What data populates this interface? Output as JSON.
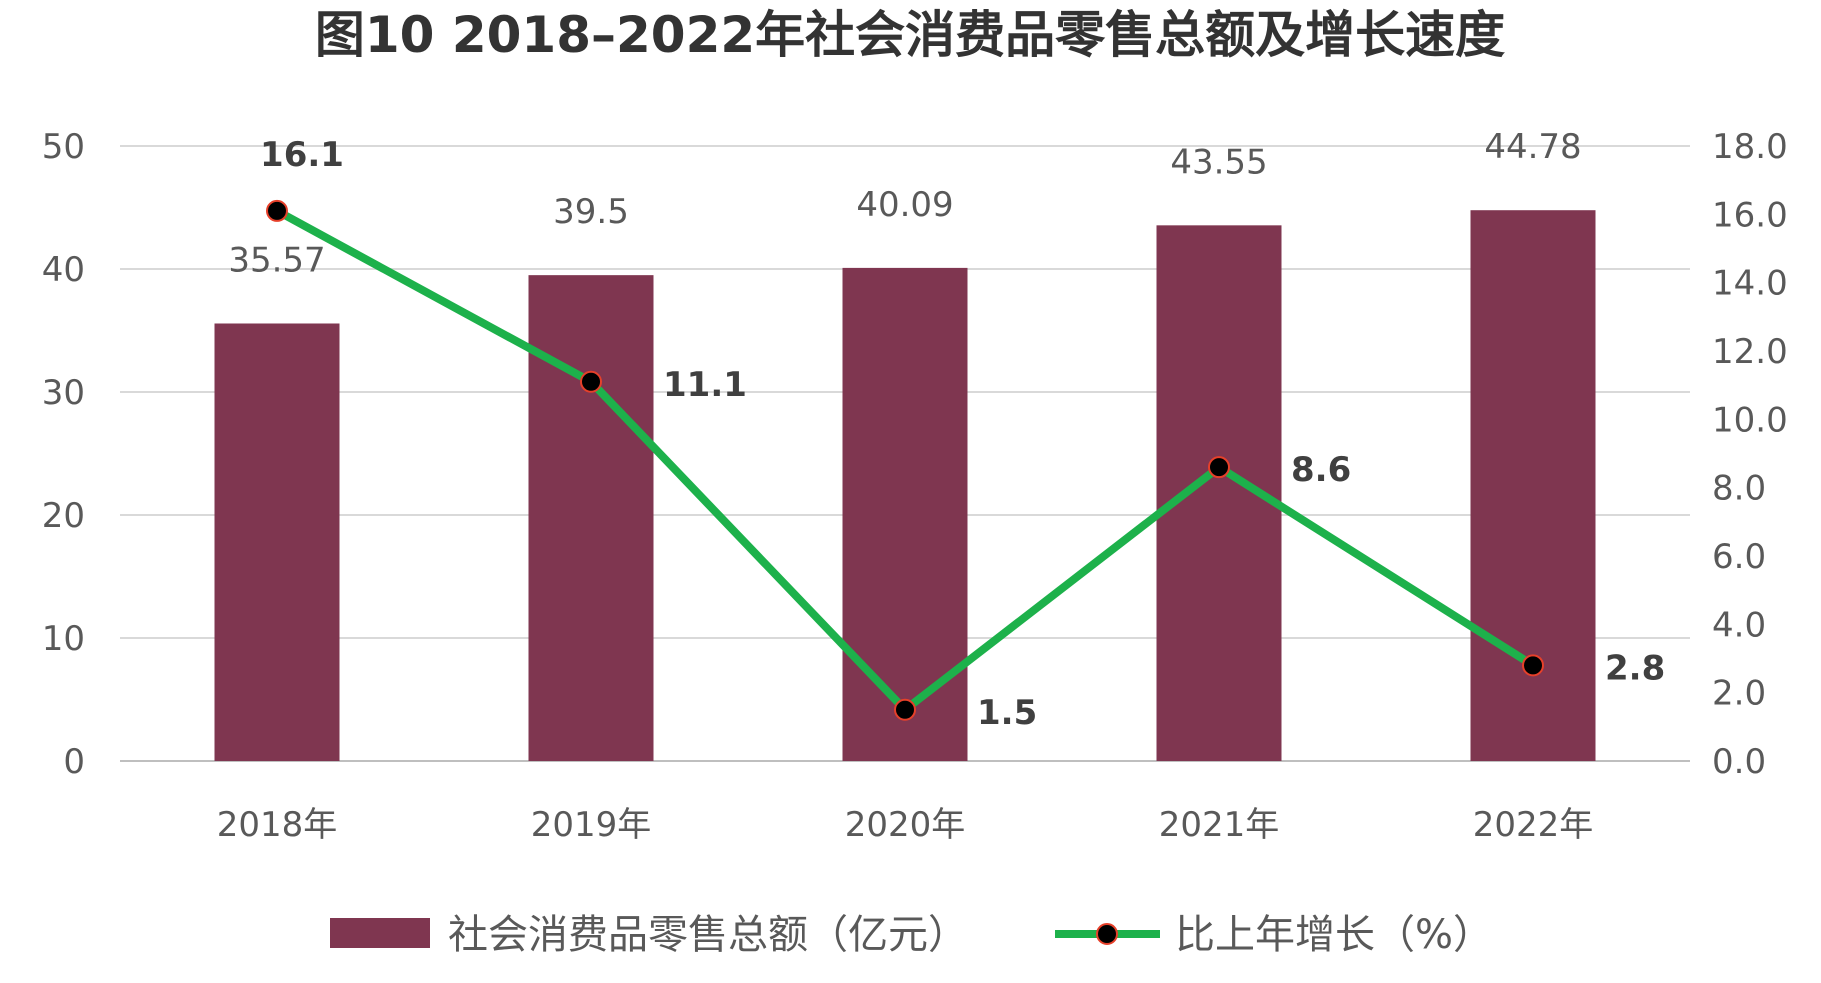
{
  "chart_data": {
    "type": "bar",
    "title": "图10  2018–2022年社会消费品零售总额及增长速度",
    "categories": [
      "2018年",
      "2019年",
      "2020年",
      "2021年",
      "2022年"
    ],
    "series": [
      {
        "name": "社会消费品零售总额（亿元）",
        "type": "bar",
        "axis": "left",
        "values": [
          35.57,
          39.5,
          40.09,
          43.55,
          44.78
        ],
        "labels": [
          "35.57",
          "39.5",
          "40.09",
          "43.55",
          "44.78"
        ],
        "color": "#7f3650"
      },
      {
        "name": "比上年增长（%）",
        "type": "line",
        "axis": "right",
        "values": [
          16.1,
          11.1,
          1.5,
          8.6,
          2.8
        ],
        "labels": [
          "16.1",
          "11.1",
          "1.5",
          "8.6",
          "2.8"
        ],
        "color": "#1db14b",
        "marker_color": "#000000",
        "marker_edge_color": "#e6402a"
      }
    ],
    "y_left": {
      "min": 0,
      "max": 50,
      "ticks": [
        "0",
        "10",
        "20",
        "30",
        "40",
        "50"
      ]
    },
    "y_right": {
      "min": 0,
      "max": 18,
      "ticks": [
        "0.0",
        "2.0",
        "4.0",
        "6.0",
        "8.0",
        "10.0",
        "12.0",
        "14.0",
        "16.0",
        "18.0"
      ]
    },
    "grid": true,
    "legend_position": "bottom"
  }
}
